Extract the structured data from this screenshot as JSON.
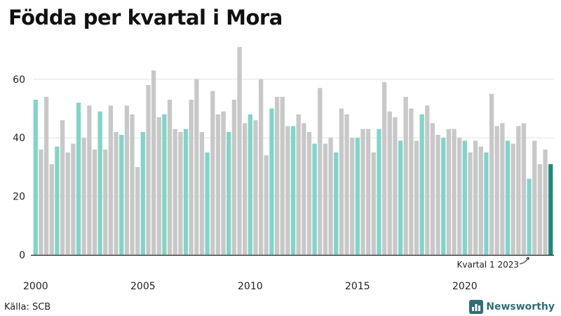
{
  "title": "Födda per kvartal i Mora",
  "source": "Källa: SCB",
  "brand": {
    "name": "Newsworthy",
    "color": "#2e6f73",
    "icon": "newsworthy-logo-icon"
  },
  "colors": {
    "q1": "#7fd6c8",
    "other": "#c8c8c8",
    "highlight": "#1f8a7a",
    "grid": "#e3e3e3",
    "axis": "#222222"
  },
  "chart_data": {
    "type": "bar",
    "title": "Födda per kvartal i Mora",
    "xlabel": "",
    "ylabel": "",
    "ylim": [
      0,
      72
    ],
    "yticks": [
      0,
      20,
      40,
      60
    ],
    "xticks": [
      "2000",
      "2005",
      "2010",
      "2015",
      "2020"
    ],
    "grid": true,
    "start_year": 2000,
    "values": [
      53,
      36,
      54,
      31,
      37,
      46,
      35,
      38,
      52,
      40,
      51,
      36,
      49,
      36,
      51,
      42,
      41,
      51,
      48,
      30,
      42,
      58,
      63,
      47,
      48,
      53,
      43,
      42,
      43,
      53,
      60,
      42,
      35,
      56,
      48,
      49,
      42,
      53,
      71,
      45,
      48,
      46,
      60,
      34,
      50,
      54,
      54,
      44,
      44,
      48,
      45,
      42,
      38,
      57,
      38,
      40,
      35,
      50,
      48,
      40,
      40,
      43,
      43,
      35,
      43,
      59,
      49,
      47,
      39,
      54,
      50,
      39,
      48,
      51,
      45,
      41,
      40,
      43,
      43,
      40,
      39,
      35,
      39,
      37,
      35,
      55,
      44,
      45,
      39,
      38,
      44,
      45,
      26,
      39,
      31,
      36,
      31
    ],
    "annotation": {
      "text": "Kvartal 1 2023",
      "target": "2023 Q1"
    }
  }
}
